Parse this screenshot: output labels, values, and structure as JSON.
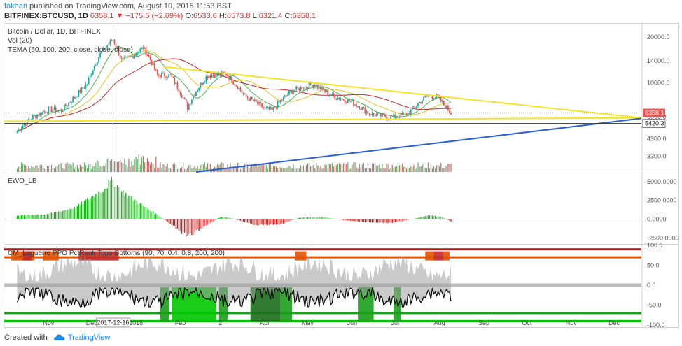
{
  "header": {
    "user": "fakhan",
    "published_text": " published on TradingView.com, August 10, 2018 11:53 BST",
    "symbol_line": "BITFINEX:BTCUSD, 1D",
    "last": "6358.1",
    "change": "−175.5 (−2.69%)",
    "open_label": "O:",
    "open": "6533.6",
    "high_label": "H:",
    "high": "6573.8",
    "low_label": "L:",
    "low": "6321.4",
    "close_label": "C:",
    "close": "6358.1"
  },
  "footer": {
    "created_with": "Created with",
    "brand": "TradingView"
  },
  "colors": {
    "up": "#26a69a",
    "down": "#ef5350",
    "yellow": "#f2e42c",
    "blue": "#2b5fd6",
    "green_ma": "#4caf50",
    "red_ma": "#c62828",
    "orange_ma": "#ff9800",
    "price_badge": "#ef5350"
  },
  "chart_data": [
    {
      "type": "candlestick",
      "title": "Bitcoin / Dollar, 1D, BITFINEX",
      "legend": [
        "Vol (20)",
        "TEMA (50, 100, 200, close, close, close)"
      ],
      "y_scale": "log",
      "ylim": [
        2600,
        24000
      ],
      "y_ticks": [
        "20000.0",
        "14000.0",
        "10000.0",
        "6000.0",
        "4300.0",
        "3300.0"
      ],
      "last_price_label": "6358.1",
      "level_label": "5420.3",
      "x_ticks": [
        "Nov",
        "Dec",
        "2018",
        "Feb",
        "2",
        "Apr",
        "May",
        "Jun",
        "Jul",
        "Aug",
        "Sep",
        "Oct",
        "Nov",
        "Dec"
      ],
      "crosshair_date": "2017-12-16",
      "close_path": [
        [
          "2017-10-10",
          4800
        ],
        [
          "2017-10-20",
          5900
        ],
        [
          "2017-11-01",
          6700
        ],
        [
          "2017-11-10",
          6600
        ],
        [
          "2017-11-20",
          8200
        ],
        [
          "2017-11-28",
          9900
        ],
        [
          "2017-12-07",
          15500
        ],
        [
          "2017-12-16",
          19400
        ],
        [
          "2017-12-22",
          14000
        ],
        [
          "2017-12-28",
          14700
        ],
        [
          "2018-01-06",
          17100
        ],
        [
          "2018-01-16",
          11300
        ],
        [
          "2018-01-25",
          11200
        ],
        [
          "2018-02-06",
          6900
        ],
        [
          "2018-02-10",
          8300
        ],
        [
          "2018-02-20",
          11200
        ],
        [
          "2018-03-05",
          11500
        ],
        [
          "2018-03-18",
          8200
        ],
        [
          "2018-04-01",
          6800
        ],
        [
          "2018-04-06",
          6600
        ],
        [
          "2018-04-20",
          8900
        ],
        [
          "2018-05-05",
          9800
        ],
        [
          "2018-05-18",
          8200
        ],
        [
          "2018-06-01",
          7500
        ],
        [
          "2018-06-13",
          6300
        ],
        [
          "2018-06-28",
          5900
        ],
        [
          "2018-07-10",
          6300
        ],
        [
          "2018-07-24",
          8300
        ],
        [
          "2018-07-30",
          8100
        ],
        [
          "2018-08-05",
          7000
        ],
        [
          "2018-08-09",
          6358
        ]
      ],
      "trendlines": [
        {
          "name": "upper",
          "from": [
            "2018-01-20",
            12800
          ],
          "to": [
            "2018-12-20",
            5900
          ]
        },
        {
          "name": "lower",
          "from": [
            "2017-10-01",
            5600
          ],
          "to": [
            "2018-12-20",
            5900
          ]
        },
        {
          "name": "blue",
          "from": [
            "2018-02-12",
            2600
          ],
          "to": [
            "2018-12-20",
            5850
          ]
        }
      ]
    },
    {
      "type": "bar",
      "title": "EWO_LB",
      "ylim": [
        -3200,
        6000
      ],
      "y_ticks": [
        "5000.0000",
        "2500.0000",
        "0.0000",
        "-2500.0000"
      ],
      "values_path": [
        [
          "2017-10-10",
          500
        ],
        [
          "2017-11-01",
          700
        ],
        [
          "2017-11-20",
          1600
        ],
        [
          "2017-12-07",
          3800
        ],
        [
          "2017-12-16",
          5300
        ],
        [
          "2017-12-22",
          3800
        ],
        [
          "2018-01-06",
          1800
        ],
        [
          "2018-01-20",
          100
        ],
        [
          "2018-02-06",
          -2400
        ],
        [
          "2018-02-15",
          -1300
        ],
        [
          "2018-03-01",
          300
        ],
        [
          "2018-03-08",
          200
        ],
        [
          "2018-03-25",
          -800
        ],
        [
          "2018-04-12",
          -700
        ],
        [
          "2018-04-25",
          200
        ],
        [
          "2018-05-12",
          300
        ],
        [
          "2018-05-25",
          -100
        ],
        [
          "2018-06-10",
          -400
        ],
        [
          "2018-06-28",
          -500
        ],
        [
          "2018-07-10",
          -100
        ],
        [
          "2018-07-25",
          500
        ],
        [
          "2018-08-03",
          300
        ],
        [
          "2018-08-09",
          -300
        ]
      ]
    },
    {
      "type": "area",
      "title": "CM_Laguerre PPO PctRank Tops-Bottoms (90, 70, 0.4, 0.8, 200, 200)",
      "ylim": [
        -100,
        100
      ],
      "y_ticks": [
        "100.0",
        "50.0",
        "0.0",
        "-50.0",
        "-100.0"
      ],
      "levels": [
        90,
        70,
        -70,
        -90
      ]
    }
  ]
}
